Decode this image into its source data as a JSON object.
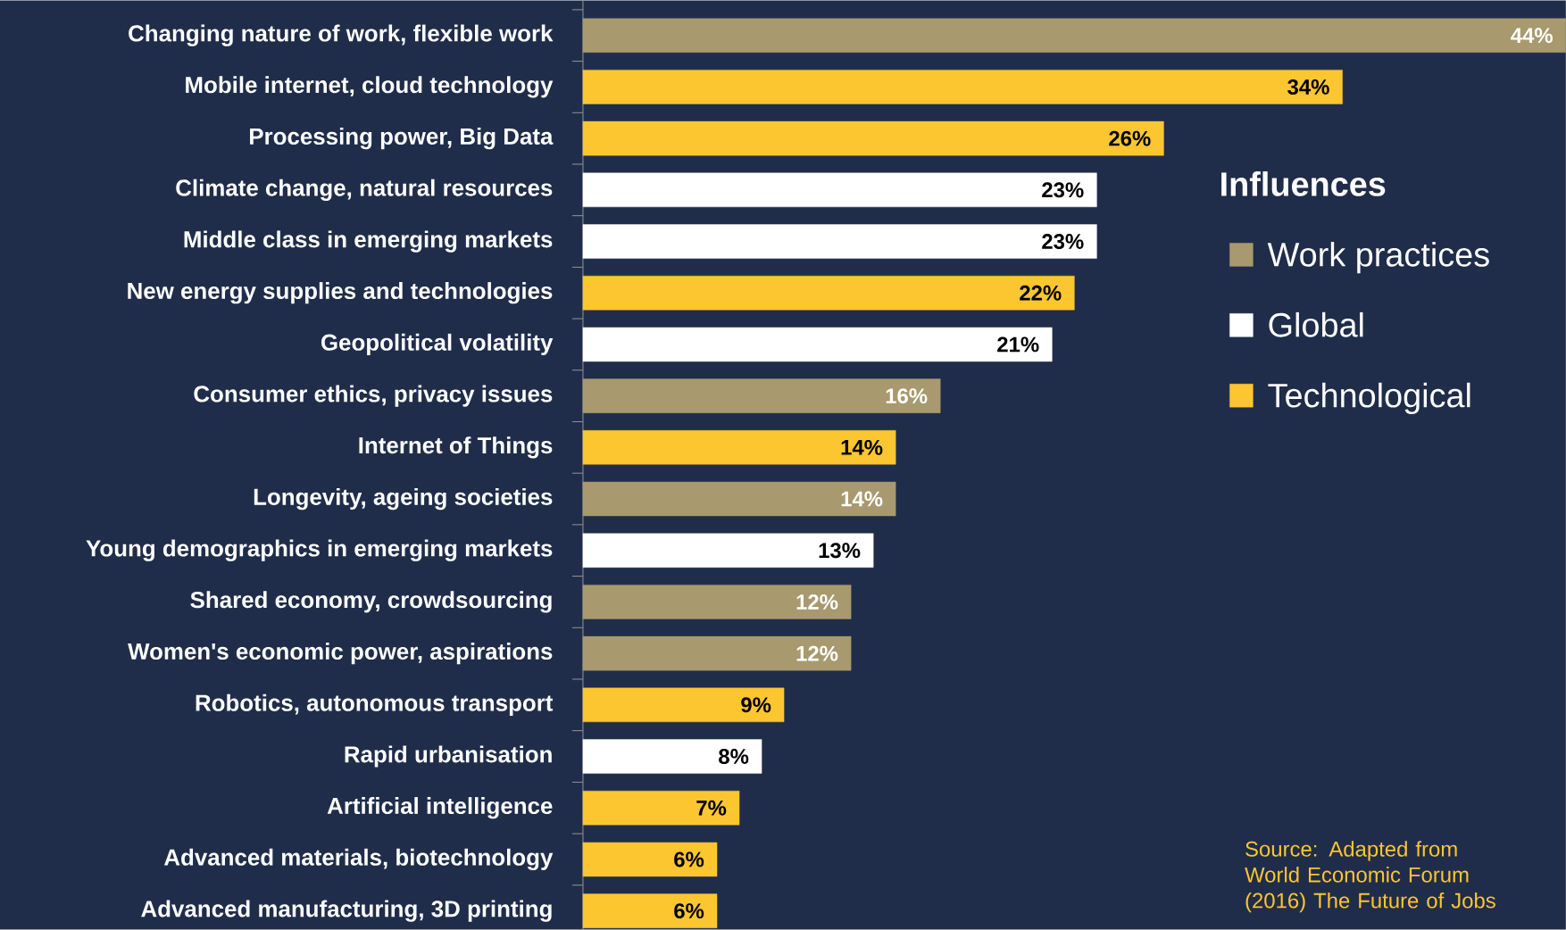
{
  "chart_data": {
    "type": "bar",
    "orientation": "horizontal",
    "stacked": true,
    "legend_title": "Influences",
    "legend": "top right",
    "tick_labels": "y",
    "categories": [
      "Changing nature of work, flexible work",
      "Mobile internet, cloud technology",
      "Processing power, Big Data",
      "Climate change, natural resources",
      "Middle class in emerging markets",
      "New energy supplies and technologies",
      "Geopolitical volatility",
      "Consumer ethics, privacy issues",
      "Internet of Things",
      "Longevity, ageing societies",
      "Young demographics in emerging markets",
      "Shared economy, crowdsourcing",
      "Women's economic power, aspirations",
      "Robotics, autonomous transport",
      "Rapid urbanisation",
      "Artificial intelligence",
      "Advanced materials, biotechnology",
      "Advanced manufacturing, 3D printing"
    ],
    "series": [
      {
        "name": "Work practices",
        "color": "#a89a6e",
        "values": [
          44,
          null,
          null,
          null,
          null,
          null,
          null,
          16,
          null,
          14,
          null,
          12,
          12,
          null,
          null,
          null,
          null,
          null
        ],
        "value_labels": [
          "44%",
          null,
          null,
          null,
          null,
          null,
          null,
          "16%",
          null,
          "14%",
          null,
          "12%",
          "12%",
          null,
          null,
          null,
          null,
          null
        ]
      },
      {
        "name": "Global",
        "color": "#ffffff",
        "values": [
          null,
          null,
          null,
          23,
          23,
          null,
          21,
          null,
          null,
          null,
          13,
          null,
          null,
          null,
          8,
          null,
          null,
          null
        ],
        "value_labels": [
          null,
          null,
          null,
          "23%",
          "23%",
          null,
          "21%",
          null,
          null,
          null,
          "13%",
          null,
          null,
          null,
          "8%",
          null,
          null,
          null
        ]
      },
      {
        "name": "Technological",
        "color": "#fcc630",
        "values": [
          null,
          34,
          26,
          null,
          null,
          22,
          null,
          null,
          14,
          null,
          null,
          null,
          null,
          9,
          null,
          7,
          6,
          6
        ],
        "value_labels": [
          null,
          "34%",
          "26%",
          null,
          null,
          "22%",
          null,
          null,
          "14%",
          null,
          null,
          null,
          null,
          "9%",
          null,
          "7%",
          "6%",
          "6%"
        ]
      }
    ],
    "annotations": [
      "Source: Adapted from World Economic Forum (2016) The Future of Jobs"
    ]
  }
}
